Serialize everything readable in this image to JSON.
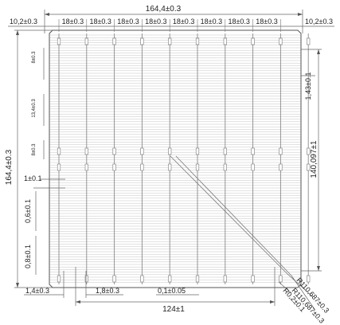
{
  "dimensions": {
    "overall_width": "164,4±0.3",
    "left_edge": "10,2±0.3",
    "right_edge": "10,2±0.3",
    "busbar_pitch": [
      "18±0.3",
      "18±0.3",
      "18±0.3",
      "18±0.3",
      "18±0.3",
      "18±0.3",
      "18±0.3",
      "18±0.3"
    ],
    "overall_height": "164,4±0.3",
    "small_gap": "1,43±0.1",
    "busbar_length": "140,097±1",
    "pad_spacing_a": "8±0.3",
    "pad_spacing_b": "13,4±0.3",
    "pad_spacing_c": "8±0.3",
    "pad_width": "1±0.1",
    "finger_width_a": "0,6±0.1",
    "finger_width_b": "0,8±0.1",
    "bottom_left": "1,4±0.3",
    "bottom_pad": "1,8±0.3",
    "finger_gap": "0,1±0.05",
    "bottom_span": "124±1",
    "radius_1": "R110,687±0.3",
    "radius_2": "R110,687±0.3",
    "corner_radius": "R0,2±0.1"
  },
  "colors": {
    "line": "#6a6a6a",
    "grid": "#b8b8b8",
    "text": "#222222"
  }
}
